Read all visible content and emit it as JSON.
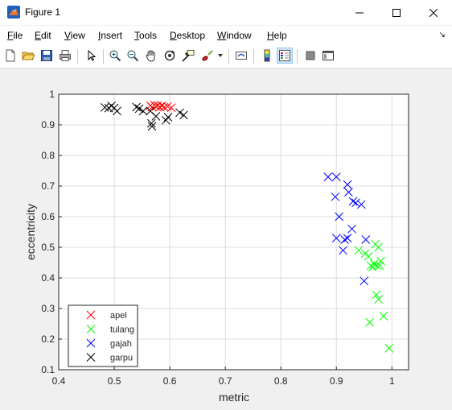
{
  "window": {
    "title": "Figure 1",
    "controls": {
      "minimize": "minimize-icon",
      "maximize": "maximize-icon",
      "close": "close-icon"
    }
  },
  "menubar": {
    "items": [
      {
        "label": "File",
        "mnemonic": "F"
      },
      {
        "label": "Edit",
        "mnemonic": "E"
      },
      {
        "label": "View",
        "mnemonic": "V"
      },
      {
        "label": "Insert",
        "mnemonic": "I"
      },
      {
        "label": "Tools",
        "mnemonic": "T"
      },
      {
        "label": "Desktop",
        "mnemonic": "D"
      },
      {
        "label": "Window",
        "mnemonic": "W"
      },
      {
        "label": "Help",
        "mnemonic": "H"
      }
    ]
  },
  "toolbar": {
    "buttons": [
      "new-figure-icon",
      "open-file-icon",
      "save-icon",
      "print-icon",
      "edit-plot-arrow-icon",
      "zoom-in-icon",
      "zoom-out-icon",
      "pan-hand-icon",
      "rotate-3d-icon",
      "data-cursor-icon",
      "brush-icon",
      "link-plot-icon",
      "colorbar-icon",
      "legend-icon",
      "hide-plot-tools-icon",
      "show-plot-tools-icon"
    ]
  },
  "colors": {
    "apel": "#ff0000",
    "tulang": "#00ff00",
    "gajah": "#0000ff",
    "garpu": "#000000",
    "grid": "#dcdcdc",
    "axes_bg": "#ffffff"
  },
  "chart_data": {
    "type": "scatter",
    "xlabel": "metric",
    "ylabel": "eccentricity",
    "xlim": [
      0.4,
      1.03
    ],
    "ylim": [
      0.1,
      1.0
    ],
    "xticks": [
      "0.4",
      "0.5",
      "0.6",
      "0.7",
      "0.8",
      "0.9",
      "1"
    ],
    "yticks": [
      "0.1",
      "0.2",
      "0.3",
      "0.4",
      "0.5",
      "0.6",
      "0.7",
      "0.8",
      "0.9",
      "1"
    ],
    "grid": true,
    "marker": "x",
    "legend": {
      "placement": "bottom-left",
      "entries": [
        "apel",
        "tulang",
        "gajah",
        "garpu"
      ]
    },
    "series": [
      {
        "name": "apel",
        "color": "#ff0000",
        "points": [
          [
            0.565,
            0.963
          ],
          [
            0.568,
            0.958
          ],
          [
            0.572,
            0.965
          ],
          [
            0.575,
            0.96
          ],
          [
            0.578,
            0.963
          ],
          [
            0.582,
            0.958
          ],
          [
            0.586,
            0.962
          ],
          [
            0.59,
            0.958
          ],
          [
            0.596,
            0.96
          ],
          [
            0.603,
            0.956
          ]
        ]
      },
      {
        "name": "tulang",
        "color": "#00ff00",
        "points": [
          [
            0.94,
            0.49
          ],
          [
            0.952,
            0.48
          ],
          [
            0.958,
            0.47
          ],
          [
            0.962,
            0.44
          ],
          [
            0.965,
            0.435
          ],
          [
            0.968,
            0.445
          ],
          [
            0.97,
            0.51
          ],
          [
            0.973,
            0.44
          ],
          [
            0.976,
            0.5
          ],
          [
            0.978,
            0.44
          ],
          [
            0.98,
            0.455
          ],
          [
            0.972,
            0.345
          ],
          [
            0.976,
            0.33
          ],
          [
            0.985,
            0.275
          ],
          [
            0.96,
            0.255
          ],
          [
            0.995,
            0.17
          ]
        ]
      },
      {
        "name": "gajah",
        "color": "#0000ff",
        "points": [
          [
            0.885,
            0.73
          ],
          [
            0.9,
            0.73
          ],
          [
            0.92,
            0.705
          ],
          [
            0.922,
            0.68
          ],
          [
            0.93,
            0.65
          ],
          [
            0.935,
            0.645
          ],
          [
            0.945,
            0.64
          ],
          [
            0.898,
            0.665
          ],
          [
            0.905,
            0.6
          ],
          [
            0.915,
            0.525
          ],
          [
            0.9,
            0.53
          ],
          [
            0.92,
            0.53
          ],
          [
            0.928,
            0.56
          ],
          [
            0.912,
            0.49
          ],
          [
            0.953,
            0.525
          ],
          [
            0.95,
            0.39
          ]
        ]
      },
      {
        "name": "garpu",
        "color": "#000000",
        "points": [
          [
            0.483,
            0.957
          ],
          [
            0.49,
            0.955
          ],
          [
            0.495,
            0.962
          ],
          [
            0.5,
            0.955
          ],
          [
            0.505,
            0.945
          ],
          [
            0.54,
            0.958
          ],
          [
            0.545,
            0.953
          ],
          [
            0.552,
            0.945
          ],
          [
            0.565,
            0.945
          ],
          [
            0.567,
            0.905
          ],
          [
            0.568,
            0.895
          ],
          [
            0.575,
            0.928
          ],
          [
            0.593,
            0.915
          ],
          [
            0.597,
            0.925
          ],
          [
            0.618,
            0.94
          ],
          [
            0.625,
            0.932
          ]
        ]
      }
    ]
  }
}
